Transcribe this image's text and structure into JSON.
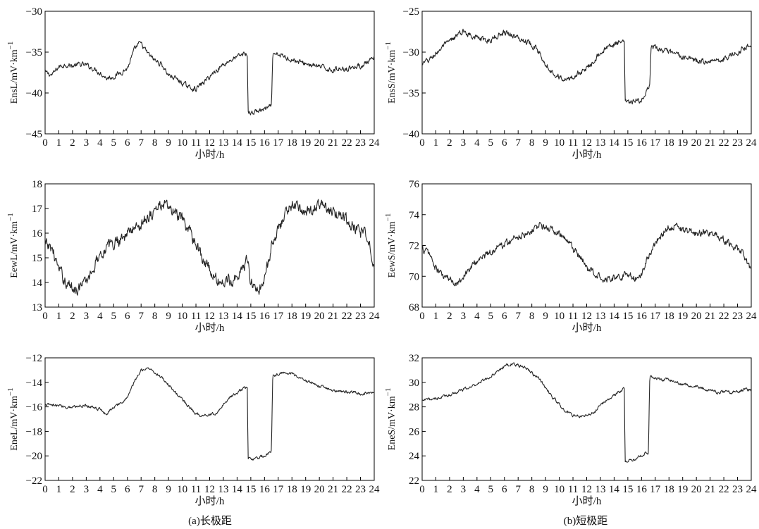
{
  "chart_data": [
    {
      "panel": "(a)长极距",
      "type": "line",
      "ylabel": "EnsL/mV·km",
      "ylabel_sup": "−1",
      "xlabel": "小时/h",
      "xlim": [
        0,
        24
      ],
      "ylim": [
        -45,
        -30
      ],
      "yticks": [
        "−30",
        "−35",
        "−40",
        "−45"
      ],
      "xticks": [
        "0",
        "1",
        "2",
        "3",
        "4",
        "5",
        "6",
        "7",
        "8",
        "9",
        "10",
        "11",
        "12",
        "13",
        "14",
        "15",
        "16",
        "17",
        "18",
        "19",
        "20",
        "21",
        "22",
        "23",
        "24"
      ],
      "noise": 0.35,
      "color": "#262626",
      "x": [
        0,
        0.5,
        1,
        1.5,
        2,
        2.5,
        3,
        3.5,
        4,
        4.5,
        5,
        5.5,
        6,
        6.5,
        6.8,
        7,
        7.5,
        8,
        8.5,
        9,
        9.5,
        10,
        10.5,
        11,
        11.5,
        12,
        12.5,
        13,
        13.5,
        14,
        14.5,
        14.75,
        14.8,
        15,
        15.5,
        16,
        16.5,
        16.6,
        17,
        17.5,
        18,
        18.5,
        19,
        19.5,
        20,
        20.5,
        21,
        21.5,
        22,
        22.5,
        23,
        23.5,
        24
      ],
      "y": [
        -37.5,
        -37.8,
        -36.8,
        -36.5,
        -36.7,
        -36.5,
        -36.6,
        -37.0,
        -37.5,
        -38.2,
        -38.0,
        -37.5,
        -37.0,
        -34.8,
        -34.0,
        -34.0,
        -35.2,
        -36.0,
        -36.5,
        -37.8,
        -38.2,
        -38.8,
        -39.3,
        -39.5,
        -38.8,
        -38.0,
        -37.2,
        -36.5,
        -36.0,
        -35.6,
        -35.2,
        -35.3,
        -42.3,
        -42.5,
        -42.2,
        -42.0,
        -41.7,
        -35.5,
        -35.3,
        -35.6,
        -35.9,
        -36.2,
        -36.4,
        -36.6,
        -36.8,
        -37.0,
        -37.2,
        -37.0,
        -37.0,
        -36.8,
        -36.7,
        -36.3,
        -35.8
      ]
    },
    {
      "panel": "(b)短极距",
      "type": "line",
      "ylabel": "EnsS/mV·km",
      "ylabel_sup": "−1",
      "xlabel": "小时/h",
      "xlim": [
        0,
        24
      ],
      "ylim": [
        -40,
        -25
      ],
      "yticks": [
        "−25",
        "−30",
        "−35",
        "−40"
      ],
      "xticks": [
        "0",
        "1",
        "2",
        "3",
        "4",
        "5",
        "6",
        "7",
        "8",
        "9",
        "10",
        "11",
        "12",
        "13",
        "14",
        "15",
        "16",
        "17",
        "18",
        "19",
        "20",
        "21",
        "22",
        "23",
        "24"
      ],
      "noise": 0.4,
      "color": "#262626",
      "x": [
        0,
        0.5,
        1,
        1.5,
        2,
        2.5,
        3,
        3.5,
        4,
        4.5,
        5,
        5.5,
        6,
        6.5,
        7,
        7.5,
        8,
        8.5,
        9,
        9.5,
        10,
        10.5,
        11,
        11.5,
        12,
        12.5,
        13,
        13.5,
        14,
        14.5,
        14.75,
        14.8,
        15,
        15.5,
        16,
        16.3,
        16.4,
        16.6,
        16.7,
        17,
        17.5,
        18,
        18.5,
        19,
        19.5,
        20,
        20.5,
        21,
        21.5,
        22,
        22.5,
        23,
        23.5,
        24
      ],
      "y": [
        -31.5,
        -31.0,
        -30.2,
        -29.3,
        -28.8,
        -28.0,
        -27.5,
        -27.8,
        -28.2,
        -28.6,
        -28.5,
        -28.0,
        -27.5,
        -27.8,
        -28.3,
        -28.6,
        -29.0,
        -30.0,
        -31.3,
        -32.5,
        -33.0,
        -33.5,
        -33.0,
        -32.5,
        -32.0,
        -31.0,
        -30.0,
        -29.5,
        -29.0,
        -28.8,
        -29.0,
        -36.0,
        -36.2,
        -36.1,
        -35.8,
        -35.5,
        -34.5,
        -34.3,
        -29.5,
        -29.5,
        -29.8,
        -30.0,
        -30.3,
        -30.6,
        -30.8,
        -31.0,
        -31.2,
        -31.0,
        -31.0,
        -30.8,
        -30.4,
        -30.0,
        -29.5,
        -29.0
      ]
    },
    {
      "panel": "(a)长极距",
      "type": "line",
      "ylabel": "EewL/mV·km",
      "ylabel_sup": "−1",
      "xlabel": "小时/h",
      "xlim": [
        0,
        24
      ],
      "ylim": [
        13,
        18
      ],
      "yticks": [
        "18",
        "17",
        "16",
        "15",
        "14",
        "13"
      ],
      "xticks": [
        "0",
        "1",
        "2",
        "3",
        "4",
        "5",
        "6",
        "7",
        "8",
        "9",
        "10",
        "11",
        "12",
        "13",
        "14",
        "15",
        "16",
        "17",
        "18",
        "19",
        "20",
        "21",
        "22",
        "23",
        "24"
      ],
      "noise": 0.28,
      "color": "#262626",
      "x": [
        0,
        0.5,
        1,
        1.5,
        2,
        2.5,
        3,
        3.5,
        4,
        4.5,
        5,
        5.5,
        6,
        6.5,
        7,
        7.5,
        8,
        8.5,
        9,
        9.5,
        10,
        10.5,
        11,
        11.5,
        12,
        12.5,
        13,
        13.5,
        14,
        14.5,
        14.8,
        15,
        15.5,
        16,
        16.5,
        17,
        17.5,
        18,
        18.5,
        19,
        19.5,
        20,
        20.5,
        21,
        21.5,
        22,
        22.5,
        23,
        23.5,
        24
      ],
      "y": [
        15.5,
        15.4,
        14.5,
        14.0,
        13.8,
        13.8,
        14.0,
        14.6,
        15.2,
        15.4,
        15.6,
        15.8,
        16.0,
        16.2,
        16.4,
        16.7,
        16.9,
        17.2,
        17.0,
        16.8,
        16.5,
        16.1,
        15.6,
        15.0,
        14.5,
        14.1,
        14.0,
        14.1,
        14.3,
        14.6,
        15.0,
        14.0,
        13.7,
        14.0,
        15.5,
        16.2,
        16.8,
        17.1,
        17.0,
        16.9,
        17.0,
        17.1,
        17.0,
        16.8,
        16.7,
        16.5,
        16.3,
        16.0,
        15.8,
        14.8
      ]
    },
    {
      "panel": "(b)短极距",
      "type": "line",
      "ylabel": "EewS/mV·km",
      "ylabel_sup": "−1",
      "xlabel": "小时/h",
      "xlim": [
        0,
        24
      ],
      "ylim": [
        68,
        76
      ],
      "yticks": [
        "76",
        "74",
        "72",
        "70",
        "68"
      ],
      "xticks": [
        "0",
        "1",
        "2",
        "3",
        "4",
        "5",
        "6",
        "7",
        "8",
        "9",
        "10",
        "11",
        "12",
        "13",
        "14",
        "15",
        "16",
        "17",
        "18",
        "19",
        "20",
        "21",
        "22",
        "23",
        "24"
      ],
      "noise": 0.28,
      "color": "#262626",
      "x": [
        0,
        0.5,
        1,
        1.5,
        2,
        2.5,
        3,
        3.5,
        4,
        4.5,
        5,
        5.5,
        6,
        6.5,
        7,
        7.5,
        8,
        8.5,
        9,
        9.5,
        10,
        10.5,
        11,
        11.5,
        12,
        12.5,
        13,
        13.5,
        14,
        14.5,
        15,
        15.5,
        16,
        16.5,
        17,
        17.5,
        18,
        18.5,
        19,
        19.5,
        20,
        20.5,
        21,
        21.5,
        22,
        22.5,
        23,
        23.5,
        24
      ],
      "y": [
        71.8,
        71.5,
        70.5,
        70.0,
        69.8,
        69.6,
        70.0,
        70.5,
        71.0,
        71.3,
        71.6,
        71.9,
        72.1,
        72.3,
        72.6,
        72.8,
        73.0,
        73.3,
        73.2,
        73.0,
        72.7,
        72.3,
        71.8,
        71.2,
        70.6,
        70.2,
        70.0,
        69.9,
        69.9,
        70.0,
        70.2,
        69.8,
        70.2,
        71.3,
        72.2,
        72.8,
        73.2,
        73.3,
        73.1,
        72.9,
        72.8,
        72.9,
        72.8,
        72.6,
        72.3,
        72.0,
        71.8,
        71.3,
        70.4
      ]
    },
    {
      "panel": "(a)长极距",
      "type": "line",
      "ylabel": "EneL/mV·km",
      "ylabel_sup": "−1",
      "xlabel": "小时/h",
      "xlim": [
        0,
        24
      ],
      "ylim": [
        -22,
        -12
      ],
      "yticks": [
        "−12",
        "−14",
        "−16",
        "−18",
        "−20",
        "−22"
      ],
      "xticks": [
        "0",
        "1",
        "2",
        "3",
        "4",
        "5",
        "6",
        "7",
        "8",
        "9",
        "10",
        "11",
        "12",
        "13",
        "14",
        "15",
        "16",
        "17",
        "18",
        "19",
        "20",
        "21",
        "22",
        "23",
        "24"
      ],
      "noise": 0.14,
      "color": "#262626",
      "x": [
        0,
        0.5,
        1,
        1.5,
        2,
        2.5,
        3,
        3.5,
        4,
        4.5,
        5,
        5.5,
        6,
        6.5,
        7,
        7.5,
        8,
        8.5,
        9,
        9.5,
        10,
        10.5,
        11,
        11.5,
        12,
        12.5,
        13,
        13.5,
        14,
        14.5,
        14.75,
        14.8,
        15,
        15.5,
        16,
        16.5,
        16.6,
        17,
        17.5,
        18,
        18.5,
        19,
        19.5,
        20,
        20.5,
        21,
        21.5,
        22,
        22.5,
        23,
        23.5,
        24
      ],
      "y": [
        -15.8,
        -15.9,
        -15.9,
        -16.0,
        -16.0,
        -15.9,
        -15.9,
        -16.0,
        -16.2,
        -16.6,
        -16.0,
        -15.8,
        -15.2,
        -14.0,
        -13.0,
        -12.8,
        -13.2,
        -13.6,
        -14.2,
        -14.8,
        -15.4,
        -16.0,
        -16.6,
        -16.7,
        -16.6,
        -16.5,
        -15.8,
        -15.2,
        -14.8,
        -14.5,
        -14.4,
        -20.2,
        -20.3,
        -20.2,
        -20.0,
        -19.6,
        -13.5,
        -13.3,
        -13.2,
        -13.3,
        -13.6,
        -13.9,
        -14.1,
        -14.3,
        -14.5,
        -14.6,
        -14.7,
        -14.8,
        -14.8,
        -14.9,
        -14.9,
        -14.9
      ]
    },
    {
      "panel": "(b)短极距",
      "type": "line",
      "ylabel": "EneS/mV·km",
      "ylabel_sup": "−1",
      "xlabel": "小时/h",
      "xlim": [
        0,
        24
      ],
      "ylim": [
        22,
        32
      ],
      "yticks": [
        "32",
        "30",
        "28",
        "26",
        "24",
        "22"
      ],
      "xticks": [
        "0",
        "1",
        "2",
        "3",
        "4",
        "5",
        "6",
        "7",
        "8",
        "9",
        "10",
        "11",
        "12",
        "13",
        "14",
        "15",
        "16",
        "17",
        "18",
        "19",
        "20",
        "21",
        "22",
        "23",
        "24"
      ],
      "noise": 0.14,
      "color": "#262626",
      "x": [
        0,
        0.5,
        1,
        1.5,
        2,
        2.5,
        3,
        3.5,
        4,
        4.5,
        5,
        5.5,
        6,
        6.5,
        7,
        7.5,
        8,
        8.5,
        9,
        9.5,
        10,
        10.5,
        11,
        11.5,
        12,
        12.5,
        13,
        13.5,
        14,
        14.5,
        14.75,
        14.8,
        15,
        15.5,
        16,
        16.5,
        16.6,
        17,
        17.5,
        18,
        18.5,
        19,
        19.5,
        20,
        20.5,
        21,
        21.5,
        22,
        22.5,
        23,
        23.5,
        24
      ],
      "y": [
        28.5,
        28.6,
        28.7,
        28.8,
        29.0,
        29.2,
        29.4,
        29.6,
        29.9,
        30.2,
        30.5,
        30.9,
        31.3,
        31.5,
        31.4,
        31.2,
        30.8,
        30.3,
        29.6,
        28.8,
        28.2,
        27.6,
        27.3,
        27.2,
        27.3,
        27.5,
        28.2,
        28.5,
        28.9,
        29.3,
        29.5,
        23.6,
        23.6,
        23.8,
        24.0,
        24.3,
        30.5,
        30.3,
        30.2,
        30.2,
        30.0,
        29.8,
        29.7,
        29.6,
        29.5,
        29.4,
        29.2,
        29.2,
        29.2,
        29.3,
        29.4,
        29.4
      ]
    }
  ]
}
